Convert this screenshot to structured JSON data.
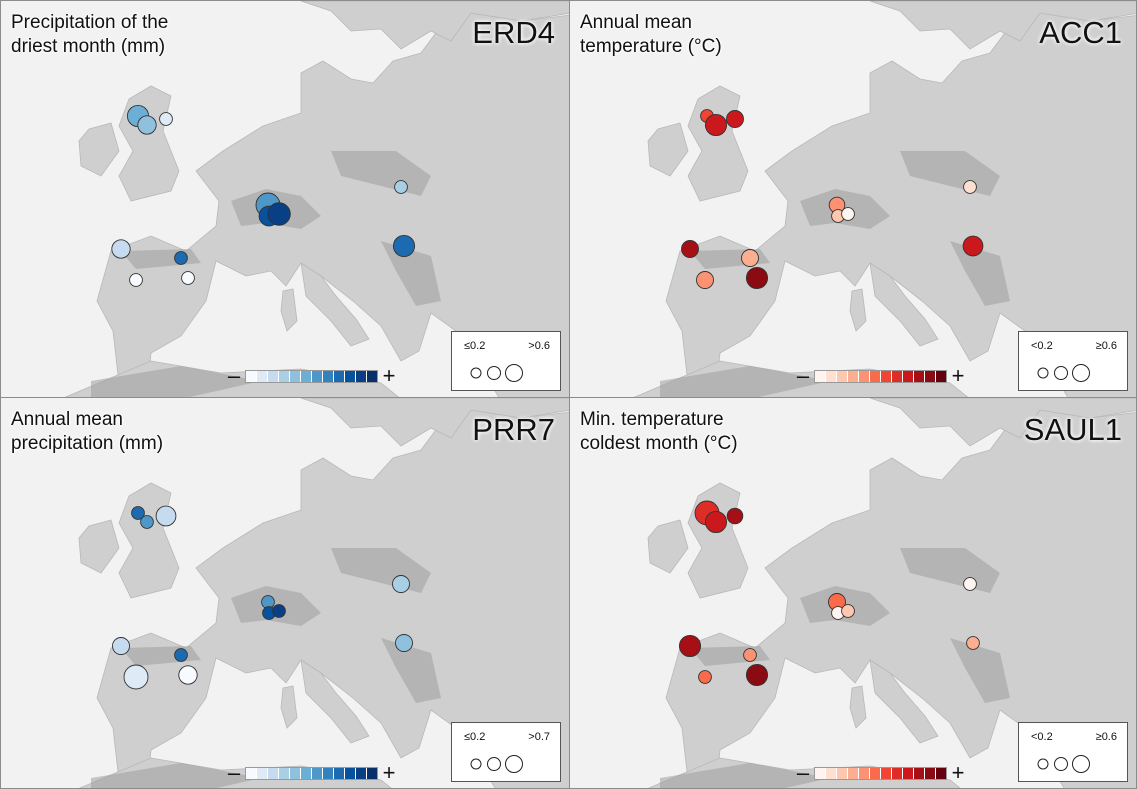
{
  "colors": {
    "blue_ramp": [
      "#f7fbff",
      "#deebf7",
      "#c6dbef",
      "#a9cfe5",
      "#8fc1de",
      "#6baed6",
      "#4d97c9",
      "#3182bd",
      "#1c6aaf",
      "#08519c",
      "#083f85",
      "#08306b"
    ],
    "red_ramp": [
      "#fff5f0",
      "#fee0d2",
      "#fdc7b0",
      "#fcae91",
      "#fc9272",
      "#fb6a4a",
      "#f14432",
      "#de2d26",
      "#cb181d",
      "#a50f15",
      "#8a0b12",
      "#67000d"
    ],
    "land": "#cfcfcf",
    "sea": "#f2f2f2",
    "mountain": "#9e9e9e"
  },
  "panels": [
    {
      "title": "Precipitation of the\ndriest month (mm)",
      "gene": "ERD4",
      "palette": "blue",
      "colorbar_minus": "–",
      "colorbar_plus": "+",
      "size_legend": {
        "low": "≤0.2",
        "high": ">0.6"
      },
      "points": [
        {
          "site": "Scotland W",
          "color_level": 0.45,
          "size_level": 0.8
        },
        {
          "site": "Scotland C",
          "color_level": 0.35,
          "size_level": 0.6
        },
        {
          "site": "Scotland E",
          "color_level": 0.1,
          "size_level": 0.2
        },
        {
          "site": "Alps W1",
          "color_level": 0.55,
          "size_level": 1.0
        },
        {
          "site": "Alps W2",
          "color_level": 0.8,
          "size_level": 0.7
        },
        {
          "site": "Alps W3",
          "color_level": 0.95,
          "size_level": 0.9
        },
        {
          "site": "Carpathians",
          "color_level": 0.3,
          "size_level": 0.2
        },
        {
          "site": "Balkans",
          "color_level": 0.75,
          "size_level": 0.8
        },
        {
          "site": "Iberia NW",
          "color_level": 0.2,
          "size_level": 0.6
        },
        {
          "site": "Iberia NE",
          "color_level": 0.7,
          "size_level": 0.2
        },
        {
          "site": "Iberia C",
          "color_level": 0.02,
          "size_level": 0.2
        },
        {
          "site": "Iberia E",
          "color_level": 0.02,
          "size_level": 0.2
        }
      ]
    },
    {
      "title": "Annual mean\ntemperature (°C)",
      "gene": "ACC1",
      "palette": "red",
      "colorbar_minus": "–",
      "colorbar_plus": "+",
      "size_legend": {
        "low": "<0.2",
        "high": "≥0.6"
      },
      "points": [
        {
          "site": "Scotland W",
          "color_level": 0.55,
          "size_level": 0.2
        },
        {
          "site": "Scotland C",
          "color_level": 0.75,
          "size_level": 0.8
        },
        {
          "site": "Scotland E",
          "color_level": 0.7,
          "size_level": 0.5
        },
        {
          "site": "Alps W1",
          "color_level": 0.35,
          "size_level": 0.4
        },
        {
          "site": "Alps W2",
          "color_level": 0.15,
          "size_level": 0.2
        },
        {
          "site": "Alps W3",
          "color_level": 0.0,
          "size_level": 0.2
        },
        {
          "site": "Carpathians",
          "color_level": 0.12,
          "size_level": 0.2
        },
        {
          "site": "Balkans",
          "color_level": 0.7,
          "size_level": 0.7
        },
        {
          "site": "Iberia NW",
          "color_level": 0.85,
          "size_level": 0.5
        },
        {
          "site": "Iberia NE",
          "color_level": 0.25,
          "size_level": 0.5
        },
        {
          "site": "Iberia C",
          "color_level": 0.35,
          "size_level": 0.5
        },
        {
          "site": "Iberia E",
          "color_level": 0.95,
          "size_level": 0.8
        }
      ]
    },
    {
      "title": "Annual mean\nprecipitation (mm)",
      "gene": "PRR7",
      "palette": "blue",
      "colorbar_minus": "–",
      "colorbar_plus": "+",
      "size_legend": {
        "low": "≤0.2",
        "high": ">0.7"
      },
      "points": [
        {
          "site": "Scotland W",
          "color_level": 0.75,
          "size_level": 0.2
        },
        {
          "site": "Scotland C",
          "color_level": 0.55,
          "size_level": 0.2
        },
        {
          "site": "Scotland E",
          "color_level": 0.15,
          "size_level": 0.7
        },
        {
          "site": "Alps W1",
          "color_level": 0.55,
          "size_level": 0.2
        },
        {
          "site": "Alps W2",
          "color_level": 0.85,
          "size_level": 0.2
        },
        {
          "site": "Alps W3",
          "color_level": 0.9,
          "size_level": 0.2
        },
        {
          "site": "Carpathians",
          "color_level": 0.25,
          "size_level": 0.5
        },
        {
          "site": "Balkans",
          "color_level": 0.35,
          "size_level": 0.5
        },
        {
          "site": "Iberia NW",
          "color_level": 0.2,
          "size_level": 0.5
        },
        {
          "site": "Iberia NE",
          "color_level": 0.7,
          "size_level": 0.2
        },
        {
          "site": "Iberia C",
          "color_level": 0.05,
          "size_level": 1.0
        },
        {
          "site": "Iberia E",
          "color_level": 0.02,
          "size_level": 0.6
        }
      ]
    },
    {
      "title": "Min. temperature\ncoldest month (°C)",
      "gene": "SAUL1",
      "palette": "red",
      "colorbar_minus": "–",
      "colorbar_plus": "+",
      "size_legend": {
        "low": "<0.2",
        "high": "≥0.6"
      },
      "points": [
        {
          "site": "Scotland W",
          "color_level": 0.6,
          "size_level": 1.0
        },
        {
          "site": "Scotland C",
          "color_level": 0.7,
          "size_level": 0.8
        },
        {
          "site": "Scotland E",
          "color_level": 0.85,
          "size_level": 0.4
        },
        {
          "site": "Alps W1",
          "color_level": 0.45,
          "size_level": 0.5
        },
        {
          "site": "Alps W2",
          "color_level": 0.0,
          "size_level": 0.2
        },
        {
          "site": "Alps W3",
          "color_level": 0.15,
          "size_level": 0.2
        },
        {
          "site": "Carpathians",
          "color_level": 0.0,
          "size_level": 0.2
        },
        {
          "site": "Balkans",
          "color_level": 0.3,
          "size_level": 0.2
        },
        {
          "site": "Iberia NW",
          "color_level": 0.8,
          "size_level": 0.8
        },
        {
          "site": "Iberia NE",
          "color_level": 0.35,
          "size_level": 0.2
        },
        {
          "site": "Iberia C",
          "color_level": 0.45,
          "size_level": 0.2
        },
        {
          "site": "Iberia E",
          "color_level": 0.95,
          "size_level": 0.8
        }
      ]
    }
  ]
}
